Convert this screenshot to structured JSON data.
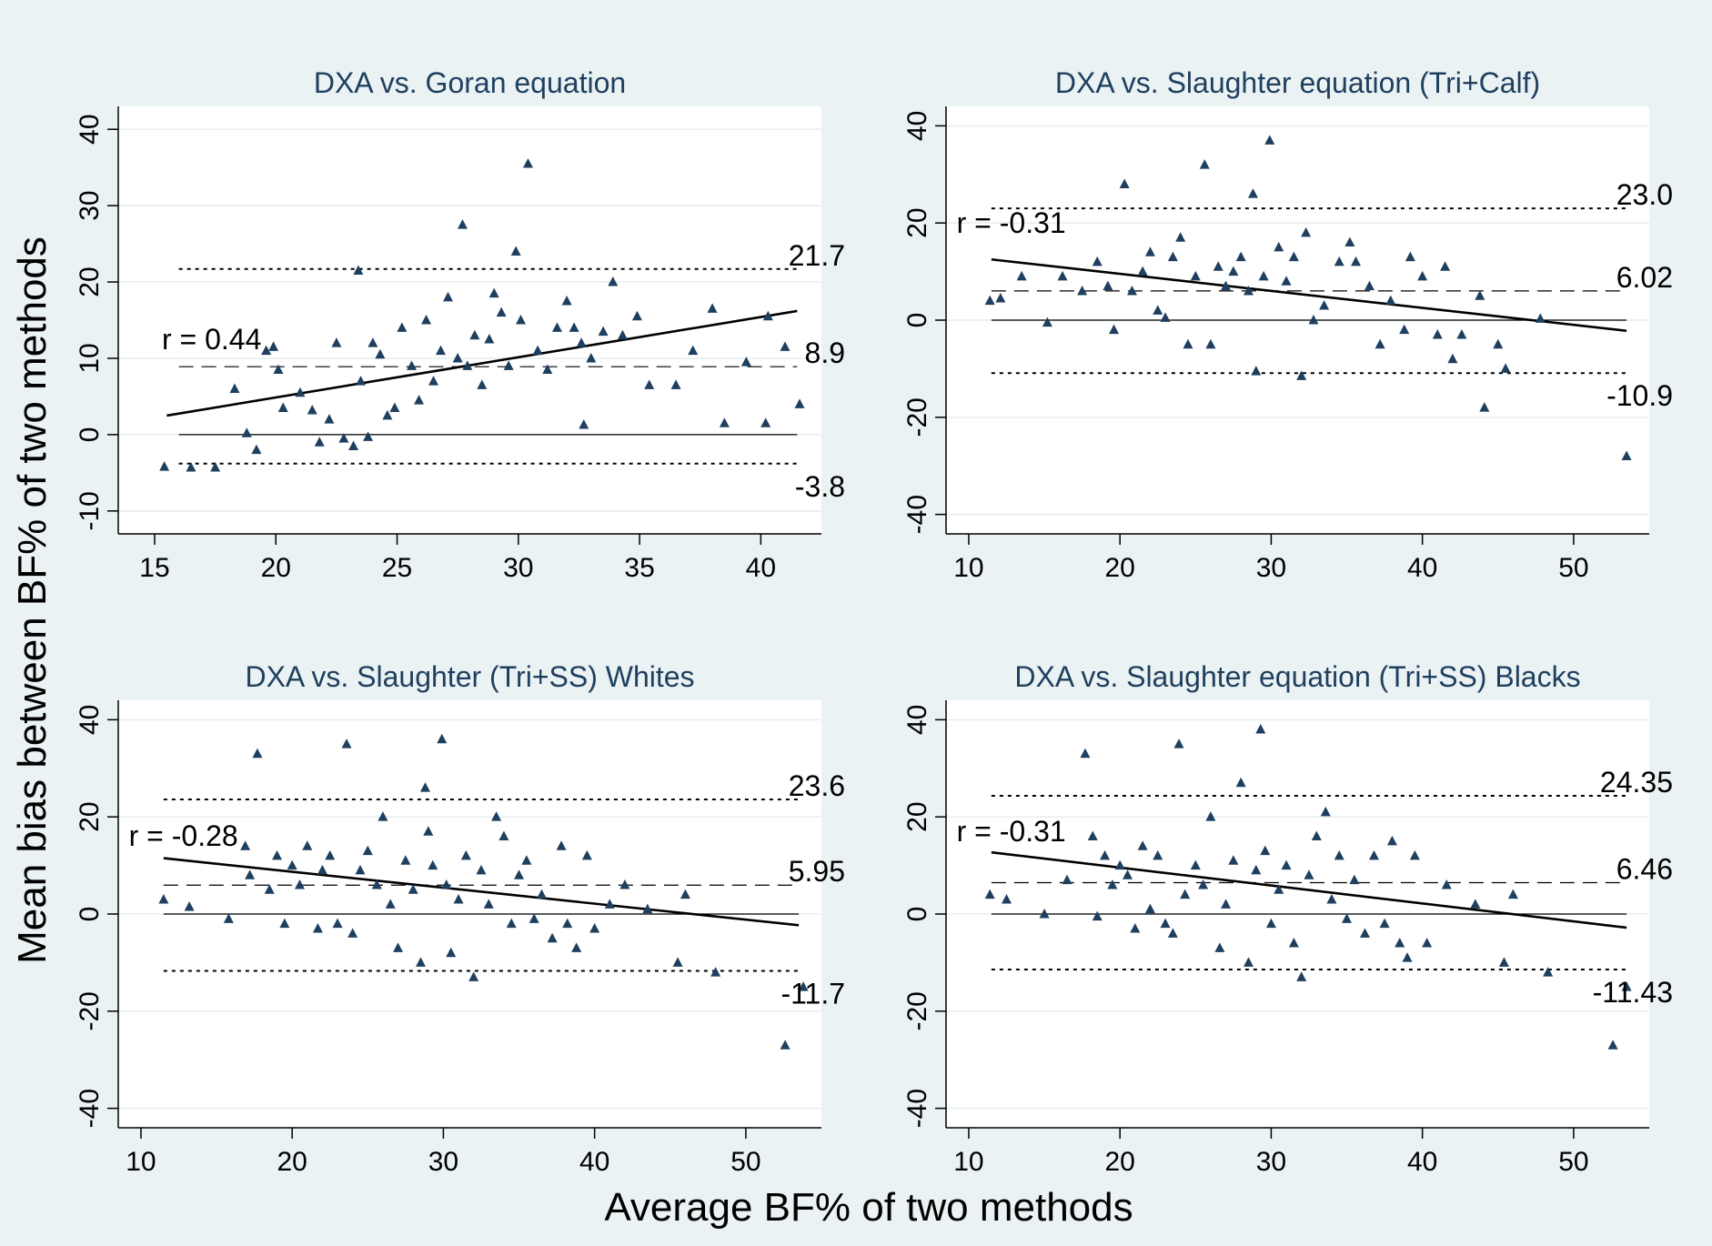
{
  "figure": {
    "ylabel": "Mean bias between BF% of two methods",
    "xlabel": "Average BF% of two methods",
    "marker_color": "#1f3f5f",
    "background_color": "#eaf2f3",
    "plot_background": "#ffffff",
    "title_color": "#1f3f5f"
  },
  "chart_data": [
    {
      "type": "scatter",
      "title": "DXA vs. Goran equation",
      "xlim": [
        13.5,
        42.5
      ],
      "ylim": [
        -13,
        43
      ],
      "xticks": [
        15,
        20,
        25,
        30,
        35,
        40
      ],
      "yticks": [
        -10,
        0,
        10,
        20,
        30,
        40
      ],
      "r_label": "r = 0.44",
      "r_label_pos": [
        15.3,
        11.2
      ],
      "mean_bias": 8.9,
      "mean_label": "8.9",
      "upper_loa": 21.7,
      "upper_label": "21.7",
      "lower_loa": -3.8,
      "lower_label": "-3.8",
      "ref_x": [
        16,
        41.5
      ],
      "regression": [
        [
          15.5,
          2.5
        ],
        [
          41.5,
          16.2
        ]
      ],
      "points": [
        [
          15.4,
          -4.2
        ],
        [
          16.5,
          -4.3
        ],
        [
          17.5,
          -4.3
        ],
        [
          18.3,
          6
        ],
        [
          18.8,
          0.2
        ],
        [
          19.2,
          -2
        ],
        [
          19.6,
          11
        ],
        [
          19.9,
          11.5
        ],
        [
          20.1,
          8.5
        ],
        [
          20.3,
          3.5
        ],
        [
          21,
          5.5
        ],
        [
          21.5,
          3.2
        ],
        [
          21.8,
          -1
        ],
        [
          22.2,
          2
        ],
        [
          22.5,
          12
        ],
        [
          22.8,
          -0.5
        ],
        [
          23.2,
          -1.5
        ],
        [
          23.4,
          21.5
        ],
        [
          23.5,
          7
        ],
        [
          23.8,
          -0.3
        ],
        [
          24,
          12
        ],
        [
          24.3,
          10.5
        ],
        [
          24.6,
          2.5
        ],
        [
          24.9,
          3.5
        ],
        [
          25.2,
          14
        ],
        [
          25.6,
          9
        ],
        [
          25.9,
          4.5
        ],
        [
          26.2,
          15
        ],
        [
          26.5,
          7
        ],
        [
          26.8,
          11
        ],
        [
          27.1,
          18
        ],
        [
          27.5,
          10
        ],
        [
          27.7,
          27.5
        ],
        [
          27.9,
          9
        ],
        [
          28.2,
          13
        ],
        [
          28.5,
          6.5
        ],
        [
          28.8,
          12.5
        ],
        [
          29,
          18.5
        ],
        [
          29.3,
          16
        ],
        [
          29.6,
          9
        ],
        [
          29.9,
          24
        ],
        [
          30.1,
          15
        ],
        [
          30.4,
          35.5
        ],
        [
          30.8,
          11
        ],
        [
          31.2,
          8.5
        ],
        [
          31.6,
          14
        ],
        [
          32,
          17.5
        ],
        [
          32.3,
          14
        ],
        [
          32.6,
          12
        ],
        [
          32.7,
          1.3
        ],
        [
          33,
          10
        ],
        [
          33.5,
          13.5
        ],
        [
          33.9,
          20
        ],
        [
          34.3,
          13
        ],
        [
          34.9,
          15.5
        ],
        [
          35.4,
          6.5
        ],
        [
          36.5,
          6.5
        ],
        [
          37.2,
          11
        ],
        [
          38.5,
          1.5
        ],
        [
          38,
          16.5
        ],
        [
          39.4,
          9.5
        ],
        [
          40.2,
          1.5
        ],
        [
          40.3,
          15.5
        ],
        [
          41,
          11.5
        ],
        [
          41.6,
          4
        ]
      ]
    },
    {
      "type": "scatter",
      "title": "DXA vs. Slaughter equation (Tri+Calf)",
      "xlim": [
        8.5,
        55
      ],
      "ylim": [
        -44,
        44
      ],
      "xticks": [
        10,
        20,
        30,
        40,
        50
      ],
      "yticks": [
        -40,
        -20,
        0,
        20,
        40
      ],
      "r_label": "r = -0.31",
      "r_label_pos": [
        9.2,
        18
      ],
      "mean_bias": 6.02,
      "mean_label": "6.02",
      "upper_loa": 23.0,
      "upper_label": "23.0",
      "lower_loa": -10.9,
      "lower_label": "-10.9",
      "ref_x": [
        11.5,
        53.5
      ],
      "regression": [
        [
          11.5,
          12.5
        ],
        [
          53.5,
          -2.2
        ]
      ],
      "points": [
        [
          11.4,
          4
        ],
        [
          12.1,
          4.5
        ],
        [
          13.5,
          9
        ],
        [
          15.2,
          -0.5
        ],
        [
          16.2,
          9
        ],
        [
          17.5,
          6
        ],
        [
          18.5,
          12
        ],
        [
          19.2,
          7
        ],
        [
          19.6,
          -2
        ],
        [
          20.3,
          28
        ],
        [
          20.8,
          6
        ],
        [
          21.5,
          10
        ],
        [
          22,
          14
        ],
        [
          22.5,
          2
        ],
        [
          23,
          0.5
        ],
        [
          23.5,
          13
        ],
        [
          24,
          17
        ],
        [
          24.5,
          -5
        ],
        [
          25,
          9
        ],
        [
          25.6,
          32
        ],
        [
          26,
          -5
        ],
        [
          26.5,
          11
        ],
        [
          27,
          7
        ],
        [
          27.5,
          10
        ],
        [
          28,
          13
        ],
        [
          28.5,
          6
        ],
        [
          28.8,
          26
        ],
        [
          29,
          -10.5
        ],
        [
          29.5,
          9
        ],
        [
          29.9,
          37
        ],
        [
          30.5,
          15
        ],
        [
          31,
          8
        ],
        [
          31.5,
          13
        ],
        [
          32,
          -11.5
        ],
        [
          32.3,
          18
        ],
        [
          32.8,
          0
        ],
        [
          33.5,
          3
        ],
        [
          34.5,
          12
        ],
        [
          35.2,
          16
        ],
        [
          35.6,
          12
        ],
        [
          36.5,
          7
        ],
        [
          37.2,
          -5
        ],
        [
          37.9,
          4
        ],
        [
          38.8,
          -2
        ],
        [
          39.2,
          13
        ],
        [
          40,
          9
        ],
        [
          41,
          -3
        ],
        [
          41.5,
          11
        ],
        [
          42,
          -8
        ],
        [
          42.6,
          -3
        ],
        [
          43.8,
          5
        ],
        [
          44.1,
          -18
        ],
        [
          45,
          -5
        ],
        [
          45.5,
          -10
        ],
        [
          47.8,
          0.3
        ],
        [
          53.5,
          -28
        ]
      ]
    },
    {
      "type": "scatter",
      "title": "DXA vs. Slaughter (Tri+SS) Whites",
      "xlim": [
        8.5,
        55
      ],
      "ylim": [
        -44,
        44
      ],
      "xticks": [
        10,
        20,
        30,
        40,
        50
      ],
      "yticks": [
        -40,
        -20,
        0,
        20,
        40
      ],
      "r_label": "r = -0.28",
      "r_label_pos": [
        9.2,
        14
      ],
      "mean_bias": 5.95,
      "mean_label": "5.95",
      "upper_loa": 23.6,
      "upper_label": "23.6",
      "lower_loa": -11.7,
      "lower_label": "-11.7",
      "ref_x": [
        11.5,
        53.5
      ],
      "regression": [
        [
          11.5,
          11.5
        ],
        [
          53.5,
          -2.3
        ]
      ],
      "points": [
        [
          11.5,
          3
        ],
        [
          13.2,
          1.5
        ],
        [
          15.8,
          -1
        ],
        [
          16.9,
          14
        ],
        [
          17.2,
          8
        ],
        [
          17.7,
          33
        ],
        [
          18.5,
          5
        ],
        [
          19,
          12
        ],
        [
          19.5,
          -2
        ],
        [
          20,
          10
        ],
        [
          20.5,
          6
        ],
        [
          21,
          14
        ],
        [
          21.7,
          -3
        ],
        [
          22,
          9
        ],
        [
          22.5,
          12
        ],
        [
          23,
          -2
        ],
        [
          23.6,
          35
        ],
        [
          24,
          -4
        ],
        [
          24.5,
          9
        ],
        [
          25,
          13
        ],
        [
          25.6,
          6
        ],
        [
          26,
          20
        ],
        [
          26.5,
          2
        ],
        [
          27,
          -7
        ],
        [
          27.5,
          11
        ],
        [
          28,
          5
        ],
        [
          28.5,
          -10
        ],
        [
          28.8,
          26
        ],
        [
          29,
          17
        ],
        [
          29.3,
          10
        ],
        [
          29.9,
          36
        ],
        [
          30.2,
          6
        ],
        [
          30.5,
          -8
        ],
        [
          31,
          3
        ],
        [
          31.5,
          12
        ],
        [
          32,
          -13
        ],
        [
          32.5,
          9
        ],
        [
          33,
          2
        ],
        [
          33.5,
          20
        ],
        [
          34,
          16
        ],
        [
          34.5,
          -2
        ],
        [
          35,
          8
        ],
        [
          35.5,
          11
        ],
        [
          36,
          -1
        ],
        [
          36.5,
          4
        ],
        [
          37.2,
          -5
        ],
        [
          37.8,
          14
        ],
        [
          38.2,
          -2
        ],
        [
          38.8,
          -7
        ],
        [
          39.5,
          12
        ],
        [
          40,
          -3
        ],
        [
          41,
          2
        ],
        [
          42,
          6
        ],
        [
          43.5,
          1
        ],
        [
          45.5,
          -10
        ],
        [
          46,
          4
        ],
        [
          48,
          -12
        ],
        [
          52.6,
          -27
        ],
        [
          53.8,
          -15
        ]
      ]
    },
    {
      "type": "scatter",
      "title": "DXA vs. Slaughter equation (Tri+SS) Blacks",
      "xlim": [
        8.5,
        55
      ],
      "ylim": [
        -44,
        44
      ],
      "xticks": [
        10,
        20,
        30,
        40,
        50
      ],
      "yticks": [
        -40,
        -20,
        0,
        20,
        40
      ],
      "r_label": "r = -0.31",
      "r_label_pos": [
        9.2,
        15
      ],
      "mean_bias": 6.46,
      "mean_label": "6.46",
      "upper_loa": 24.35,
      "upper_label": "24.35",
      "lower_loa": -11.43,
      "lower_label": "-11.43",
      "ref_x": [
        11.5,
        53.5
      ],
      "regression": [
        [
          11.5,
          12.7
        ],
        [
          53.5,
          -2.8
        ]
      ],
      "points": [
        [
          11.4,
          4
        ],
        [
          12.5,
          3
        ],
        [
          15,
          0
        ],
        [
          16.5,
          7
        ],
        [
          17.7,
          33
        ],
        [
          18.2,
          16
        ],
        [
          18.5,
          -0.5
        ],
        [
          19,
          12
        ],
        [
          19.5,
          6
        ],
        [
          20,
          10
        ],
        [
          20.5,
          8
        ],
        [
          21,
          -3
        ],
        [
          21.5,
          14
        ],
        [
          22,
          1
        ],
        [
          22.5,
          12
        ],
        [
          23,
          -2
        ],
        [
          23.5,
          -4
        ],
        [
          23.9,
          35
        ],
        [
          24.3,
          4
        ],
        [
          25,
          10
        ],
        [
          25.5,
          6
        ],
        [
          26,
          20
        ],
        [
          26.6,
          -7
        ],
        [
          27,
          2
        ],
        [
          27.5,
          11
        ],
        [
          28,
          27
        ],
        [
          28.5,
          -10
        ],
        [
          29,
          9
        ],
        [
          29.3,
          38
        ],
        [
          29.6,
          13
        ],
        [
          30,
          -2
        ],
        [
          30.5,
          5
        ],
        [
          31,
          10
        ],
        [
          31.5,
          -6
        ],
        [
          32,
          -13
        ],
        [
          32.5,
          8
        ],
        [
          33,
          16
        ],
        [
          33.6,
          21
        ],
        [
          34,
          3
        ],
        [
          34.5,
          12
        ],
        [
          35,
          -1
        ],
        [
          35.5,
          7
        ],
        [
          36.2,
          -4
        ],
        [
          36.8,
          12
        ],
        [
          37.5,
          -2
        ],
        [
          38,
          15
        ],
        [
          38.5,
          -6
        ],
        [
          39,
          -9
        ],
        [
          39.5,
          12
        ],
        [
          40.3,
          -6
        ],
        [
          41.6,
          6
        ],
        [
          43.5,
          2
        ],
        [
          45.4,
          -10
        ],
        [
          46,
          4
        ],
        [
          48.3,
          -12
        ],
        [
          52.6,
          -27
        ],
        [
          53.5,
          -15
        ]
      ]
    }
  ]
}
